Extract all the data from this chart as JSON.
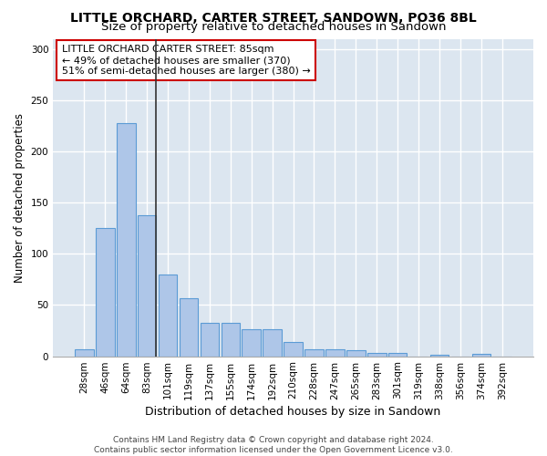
{
  "title": "LITTLE ORCHARD, CARTER STREET, SANDOWN, PO36 8BL",
  "subtitle": "Size of property relative to detached houses in Sandown",
  "xlabel": "Distribution of detached houses by size in Sandown",
  "ylabel": "Number of detached properties",
  "categories": [
    "28sqm",
    "46sqm",
    "64sqm",
    "83sqm",
    "101sqm",
    "119sqm",
    "137sqm",
    "155sqm",
    "174sqm",
    "192sqm",
    "210sqm",
    "228sqm",
    "247sqm",
    "265sqm",
    "283sqm",
    "301sqm",
    "319sqm",
    "338sqm",
    "356sqm",
    "374sqm",
    "392sqm"
  ],
  "values": [
    7,
    125,
    228,
    138,
    80,
    57,
    33,
    33,
    26,
    26,
    14,
    7,
    7,
    6,
    3,
    3,
    0,
    1,
    0,
    2,
    0
  ],
  "bar_color": "#aec6e8",
  "bar_edge_color": "#5b9bd5",
  "bar_linewidth": 0.8,
  "vline_index": 3,
  "vline_color": "#333333",
  "vline_linewidth": 1.2,
  "annotation_text": "LITTLE ORCHARD CARTER STREET: 85sqm\n← 49% of detached houses are smaller (370)\n51% of semi-detached houses are larger (380) →",
  "annotation_box_color": "#ffffff",
  "annotation_border_color": "#cc0000",
  "ylim": [
    0,
    310
  ],
  "yticks": [
    0,
    50,
    100,
    150,
    200,
    250,
    300
  ],
  "fig_background": "#ffffff",
  "ax_background": "#dce6f0",
  "grid_color": "#ffffff",
  "footer_text": "Contains HM Land Registry data © Crown copyright and database right 2024.\nContains public sector information licensed under the Open Government Licence v3.0.",
  "title_fontsize": 10,
  "subtitle_fontsize": 9.5,
  "xlabel_fontsize": 9,
  "ylabel_fontsize": 8.5,
  "tick_fontsize": 7.5,
  "annotation_fontsize": 8,
  "footer_fontsize": 6.5
}
